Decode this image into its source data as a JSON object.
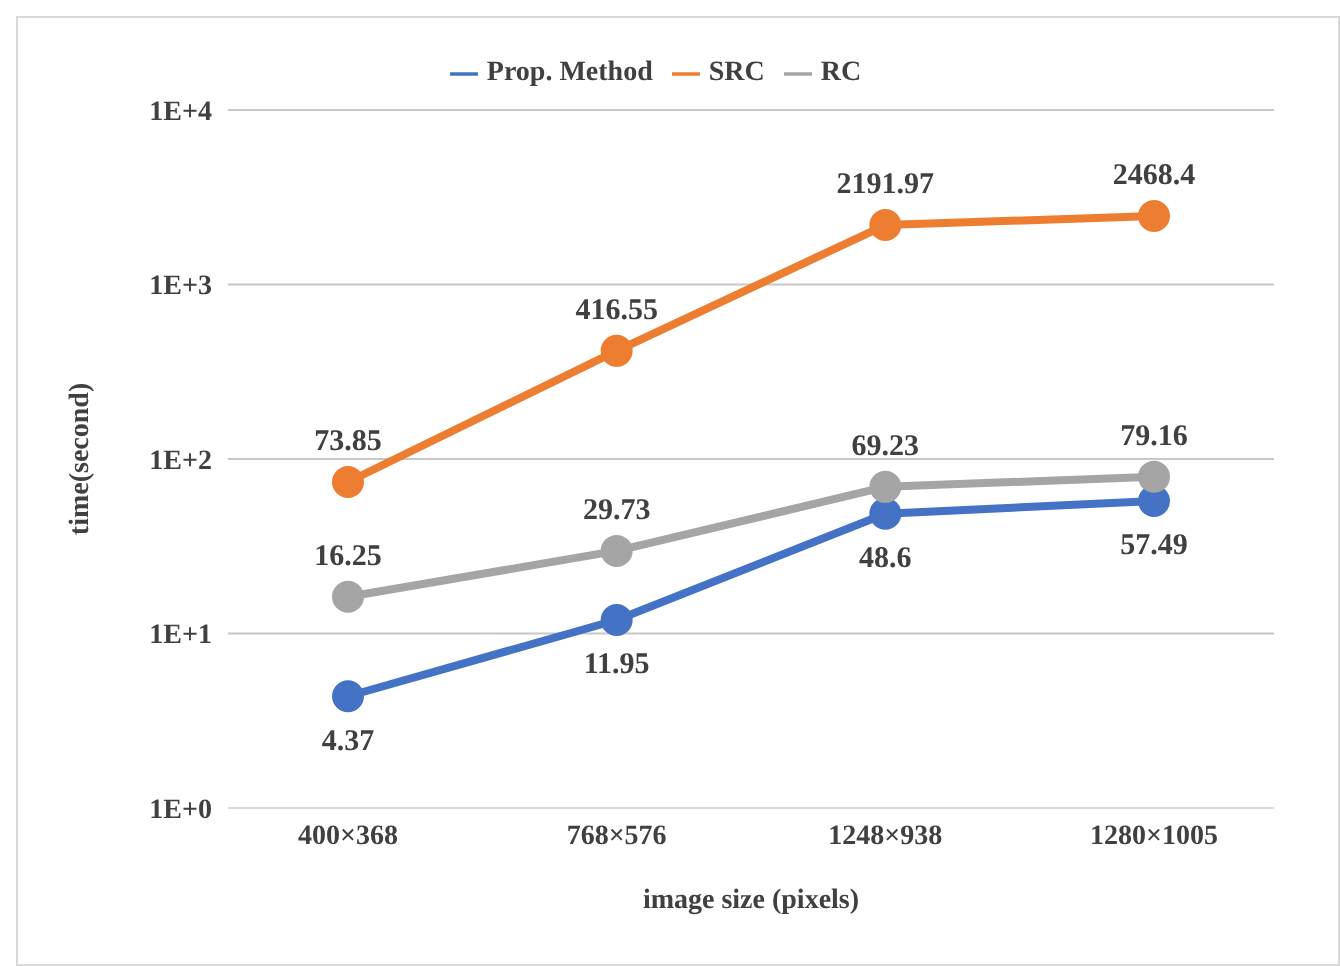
{
  "chart_data": {
    "type": "line",
    "xlabel": "image size (pixels)",
    "ylabel": "time(second)",
    "categories": [
      "400×368",
      "768×576",
      "1248×938",
      "1280×1005"
    ],
    "series": [
      {
        "name": "Prop. Method",
        "color": "#4472c4",
        "values": [
          4.37,
          11.95,
          48.6,
          57.49
        ]
      },
      {
        "name": "SRC",
        "color": "#ed7d31",
        "values": [
          73.85,
          416.55,
          2191.97,
          2468.4
        ]
      },
      {
        "name": "RC",
        "color": "#a5a5a5",
        "values": [
          16.25,
          29.73,
          69.23,
          79.16
        ]
      }
    ],
    "log": "y",
    "ylim": [
      1,
      10000
    ],
    "yticks": [
      {
        "value": 1,
        "label": "1E+0"
      },
      {
        "value": 10,
        "label": "1E+1"
      },
      {
        "value": 100,
        "label": "1E+2"
      },
      {
        "value": 1000,
        "label": "1E+3"
      },
      {
        "value": 10000,
        "label": "1E+4"
      }
    ],
    "grid": "y",
    "legend": "top",
    "marker": "circle",
    "line_style": "solid",
    "data_labels": true
  }
}
